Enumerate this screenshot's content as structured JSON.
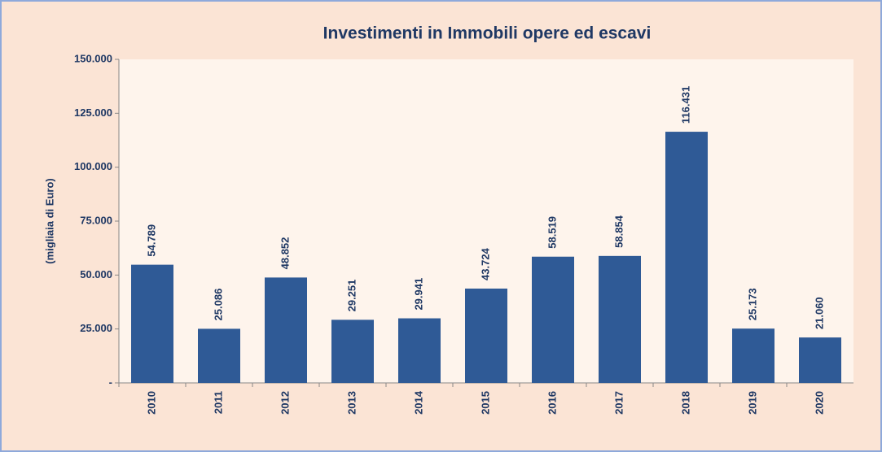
{
  "chart_data": {
    "type": "bar",
    "title": "Investimenti in Immobili opere ed escavi",
    "y_label": "(migliaia di Euro)",
    "categories": [
      "2010",
      "2011",
      "2012",
      "2013",
      "2014",
      "2015",
      "2016",
      "2017",
      "2018",
      "2019",
      "2020"
    ],
    "values": [
      54789,
      25086,
      48852,
      29251,
      29941,
      43724,
      58519,
      58854,
      116431,
      25173,
      21060
    ],
    "value_labels": [
      "54.789",
      "25.086",
      "48.852",
      "29.251",
      "29.941",
      "43.724",
      "58.519",
      "58.854",
      "116.431",
      "25.173",
      "21.060"
    ],
    "color": "#2f5a96",
    "ylim": [
      0,
      150000
    ],
    "yticks": [
      {
        "value": 0,
        "label": "-"
      },
      {
        "value": 25000,
        "label": "25.000"
      },
      {
        "value": 50000,
        "label": "50.000"
      },
      {
        "value": 75000,
        "label": "75.000"
      },
      {
        "value": 100000,
        "label": "100.000"
      },
      {
        "value": 125000,
        "label": "125.000"
      },
      {
        "value": 150000,
        "label": "150.000"
      }
    ]
  }
}
